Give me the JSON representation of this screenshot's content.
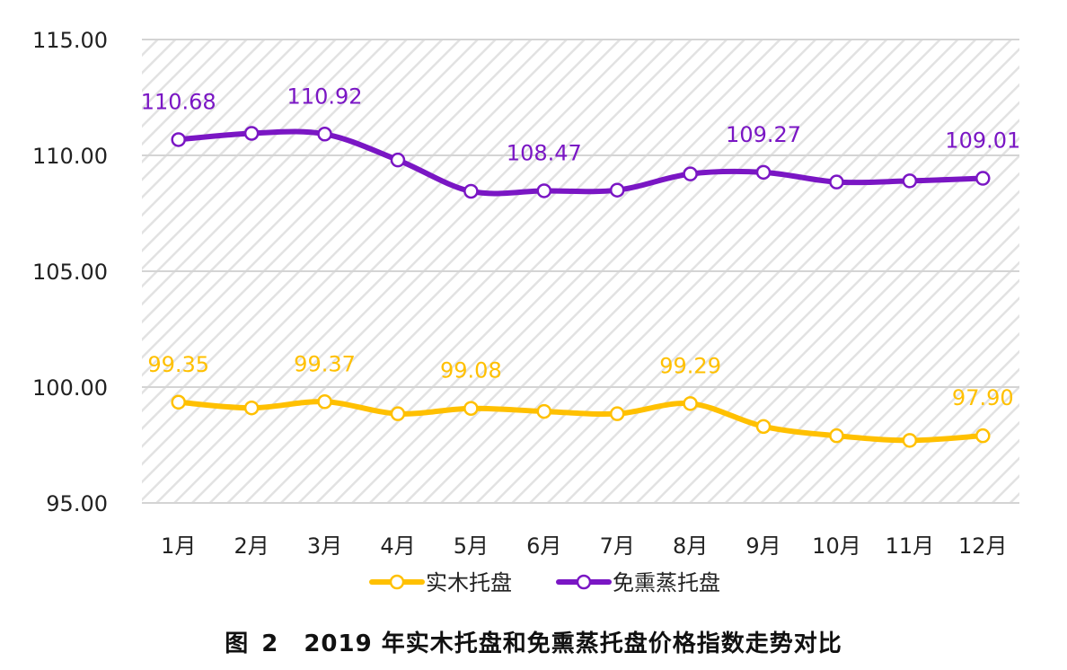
{
  "chart_data": {
    "type": "line",
    "categories": [
      "1月",
      "2月",
      "3月",
      "4月",
      "5月",
      "6月",
      "7月",
      "8月",
      "9月",
      "10月",
      "11月",
      "12月"
    ],
    "series": [
      {
        "name": "实木托盘",
        "color": "#FFC000",
        "values": [
          99.35,
          99.1,
          99.37,
          98.85,
          99.08,
          98.95,
          98.85,
          99.29,
          98.3,
          97.9,
          97.7,
          97.9
        ]
      },
      {
        "name": "免熏蒸托盘",
        "color": "#7A16C4",
        "values": [
          110.68,
          110.95,
          110.92,
          109.8,
          108.45,
          108.47,
          108.5,
          109.2,
          109.27,
          108.85,
          108.9,
          109.01
        ]
      }
    ],
    "ylim": [
      95,
      115
    ],
    "yticks": [
      "95.00",
      "100.00",
      "105.00",
      "110.00",
      "115.00"
    ],
    "data_labels": [
      {
        "series": 1,
        "index": 0,
        "text": "110.68"
      },
      {
        "series": 1,
        "index": 2,
        "text": "110.92"
      },
      {
        "series": 1,
        "index": 5,
        "text": "108.47"
      },
      {
        "series": 1,
        "index": 8,
        "text": "109.27"
      },
      {
        "series": 1,
        "index": 11,
        "text": "109.01"
      },
      {
        "series": 0,
        "index": 0,
        "text": "99.35"
      },
      {
        "series": 0,
        "index": 2,
        "text": "99.37"
      },
      {
        "series": 0,
        "index": 4,
        "text": "99.08"
      },
      {
        "series": 0,
        "index": 7,
        "text": "99.29"
      },
      {
        "series": 0,
        "index": 11,
        "text": "97.90"
      }
    ],
    "legend_position": "bottom",
    "grid": true,
    "background": "diagonal-hatch",
    "caption": {
      "prefix": "图",
      "number": "2",
      "text": "2019 年实木托盘和免熏蒸托盘价格指数走势对比"
    }
  }
}
